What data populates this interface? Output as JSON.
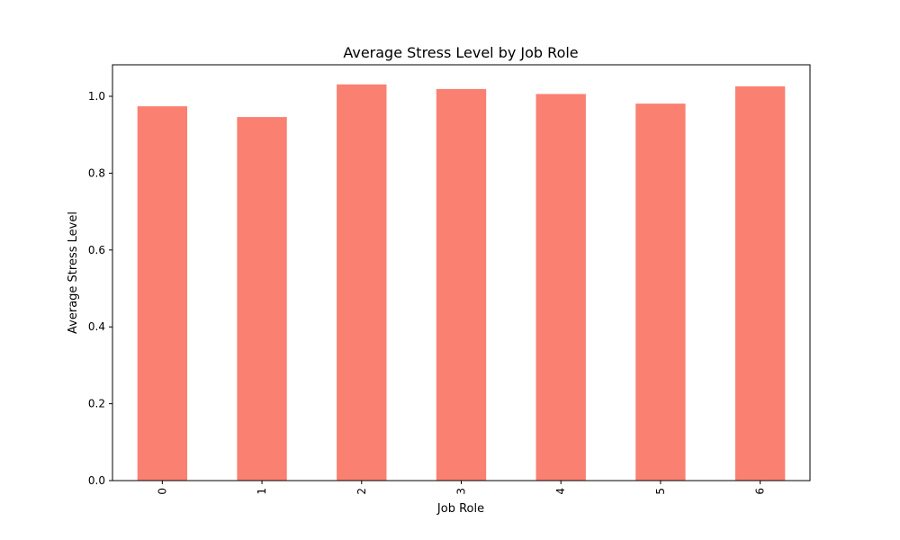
{
  "chart_data": {
    "type": "bar",
    "title": "Average Stress Level by Job Role",
    "xlabel": "Job Role",
    "ylabel": "Average Stress Level",
    "categories": [
      "0",
      "1",
      "2",
      "3",
      "4",
      "5",
      "6"
    ],
    "values": [
      0.974,
      0.946,
      1.031,
      1.019,
      1.006,
      0.981,
      1.026
    ],
    "ylim": [
      0,
      1.082
    ],
    "yticks": [
      0.0,
      0.2,
      0.4,
      0.6,
      0.8,
      1.0
    ],
    "ytick_labels": [
      "0.0",
      "0.2",
      "0.4",
      "0.6",
      "0.8",
      "1.0"
    ],
    "xtick_rotation": "vertical",
    "grid": false,
    "legend": "none",
    "bar_color": "#fa8072"
  }
}
